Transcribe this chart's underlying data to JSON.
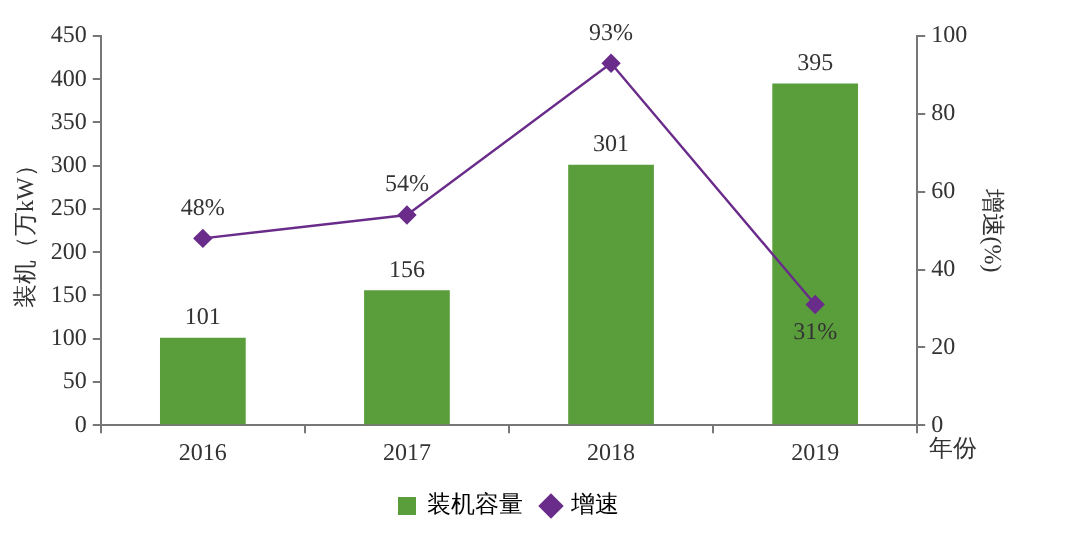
{
  "chart_data": {
    "type": "bar",
    "categories": [
      "2016",
      "2017",
      "2018",
      "2019"
    ],
    "xlabel": "年份",
    "ylabel": "装机（万kW）",
    "y2label": "增速(%)",
    "series": [
      {
        "name": "装机容量",
        "color": "#5a9e3c",
        "values": [
          101,
          156,
          301,
          395
        ],
        "value_labels": [
          "101",
          "156",
          "301",
          "395"
        ]
      },
      {
        "name": "增速",
        "type": "line",
        "axis": "y2",
        "color": "#6a2c8a",
        "marker": "diamond",
        "values": [
          48,
          54,
          93,
          31
        ],
        "value_labels": [
          "48%",
          "54%",
          "93%",
          "31%"
        ]
      }
    ],
    "ylim": [
      0,
      450
    ],
    "yticks": [
      0,
      50,
      100,
      150,
      200,
      250,
      300,
      350,
      400,
      450
    ],
    "y2lim": [
      0,
      100
    ],
    "y2ticks": [
      0,
      20,
      40,
      60,
      80,
      100
    ],
    "grid": false,
    "legend": "bottom"
  }
}
